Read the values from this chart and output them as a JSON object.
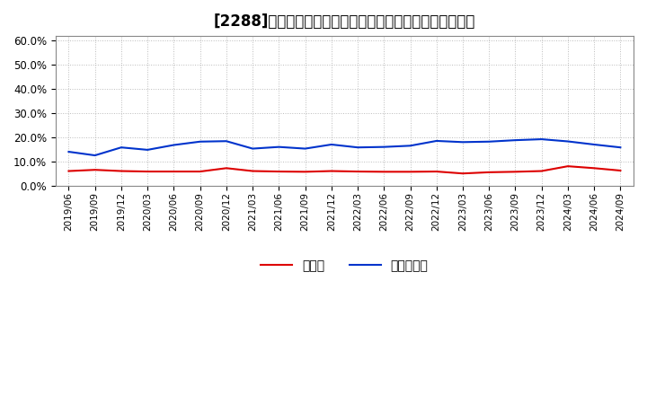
{
  "title": "[2288]　現預金、有利子負債の総資産に対する比率の推移",
  "x_labels": [
    "2019/06",
    "2019/09",
    "2019/12",
    "2020/03",
    "2020/06",
    "2020/09",
    "2020/12",
    "2021/03",
    "2021/06",
    "2021/09",
    "2021/12",
    "2022/03",
    "2022/06",
    "2022/09",
    "2022/12",
    "2023/03",
    "2023/06",
    "2023/09",
    "2023/12",
    "2024/03",
    "2024/06",
    "2024/09"
  ],
  "cash": [
    0.06,
    0.065,
    0.06,
    0.058,
    0.058,
    0.058,
    0.072,
    0.06,
    0.058,
    0.057,
    0.06,
    0.058,
    0.057,
    0.057,
    0.058,
    0.05,
    0.055,
    0.057,
    0.06,
    0.08,
    0.072,
    0.062
  ],
  "debt": [
    0.14,
    0.125,
    0.158,
    0.148,
    0.168,
    0.182,
    0.184,
    0.153,
    0.16,
    0.153,
    0.17,
    0.158,
    0.16,
    0.165,
    0.185,
    0.18,
    0.182,
    0.188,
    0.192,
    0.183,
    0.17,
    0.158
  ],
  "cash_color": "#dd0000",
  "debt_color": "#0033cc",
  "background_color": "#ffffff",
  "grid_color": "#aaaaaa",
  "ylim": [
    0.0,
    0.62
  ],
  "yticks": [
    0.0,
    0.1,
    0.2,
    0.3,
    0.4,
    0.5,
    0.6
  ],
  "legend_cash": "現預金",
  "legend_debt": "有利子負債",
  "title_fontsize": 12
}
